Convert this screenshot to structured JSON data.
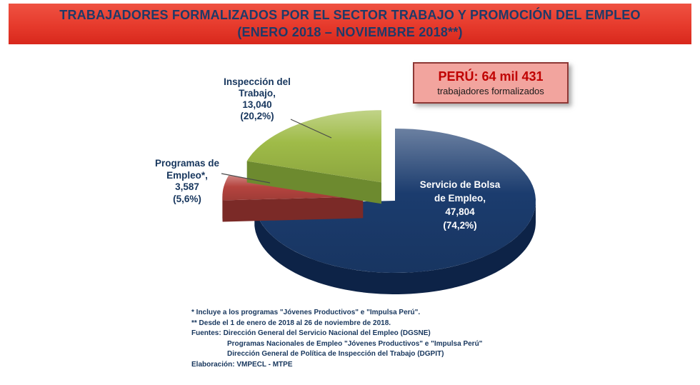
{
  "header": {
    "title_line1": "TRABAJADORES FORMALIZADOS POR EL SECTOR TRABAJO Y PROMOCIÓN DEL EMPLEO",
    "title_line2": "(ENERO 2018 – NOVIEMBRE 2018**)",
    "bg_color": "#e63a2c",
    "text_color": "#1f3a68"
  },
  "summary_box": {
    "title": "PERÚ: 64 mil 431",
    "subtitle": "trabajadores formalizados",
    "bg_color": "#f2a49e",
    "border_color": "#8e3835",
    "title_color": "#c00000",
    "subtitle_color": "#1a1a1a"
  },
  "chart_data": {
    "type": "pie",
    "style": "3d-exploded",
    "title": "Trabajadores formalizados por el Sector Trabajo y Promoción del Empleo (Enero 2018 – Noviembre 2018)",
    "total": 64431,
    "total_label": "PERÚ: 64 mil 431 trabajadores formalizados",
    "legend_position": "none",
    "labels_on_chart": true,
    "slices": [
      {
        "label": "Servicio de Bolsa de Empleo",
        "value": 47804,
        "value_label": "47,804",
        "pct": 74.2,
        "pct_label": "(74,2%)",
        "color": "#1b3c6e",
        "side_color": "#0d2347",
        "callout": [
          "Servicio de Bolsa",
          "de Empleo,",
          "47,804",
          "(74,2%)"
        ]
      },
      {
        "label": "Programas de Empleo*",
        "value": 3587,
        "value_label": "3,587",
        "pct": 5.6,
        "pct_label": "(5,6%)",
        "color": "#b5443f",
        "side_color": "#7b2a27",
        "callout": [
          "Programas de",
          "Empleo*,",
          "3,587",
          "(5,6%)"
        ]
      },
      {
        "label": "Inspección del Trabajo",
        "value": 13040,
        "value_label": "13,040",
        "pct": 20.2,
        "pct_label": "(20,2%)",
        "color": "#9fbb48",
        "side_color": "#6d8a2f",
        "callout": [
          "Inspección del",
          "Trabajo,",
          "13,040",
          "(20,2%)"
        ]
      }
    ]
  },
  "footnotes": {
    "note1": "* Incluye a los programas \"Jóvenes Productivos\" e \"Impulsa Perú\".",
    "note2": "** Desde el 1 de enero de 2018 al 26 de noviembre de 2018.",
    "sources_label": "Fuentes:",
    "source1": "Dirección General del Servicio Nacional del Empleo (DGSNE)",
    "source2": "Programas Nacionales de Empleo \"Jóvenes Productivos\" e \"Impulsa Perú\"",
    "source3": "Dirección General de Política de Inspección del Trabajo (DGPIT)",
    "elaboracion": "Elaboración: VMPECL - MTPE"
  }
}
